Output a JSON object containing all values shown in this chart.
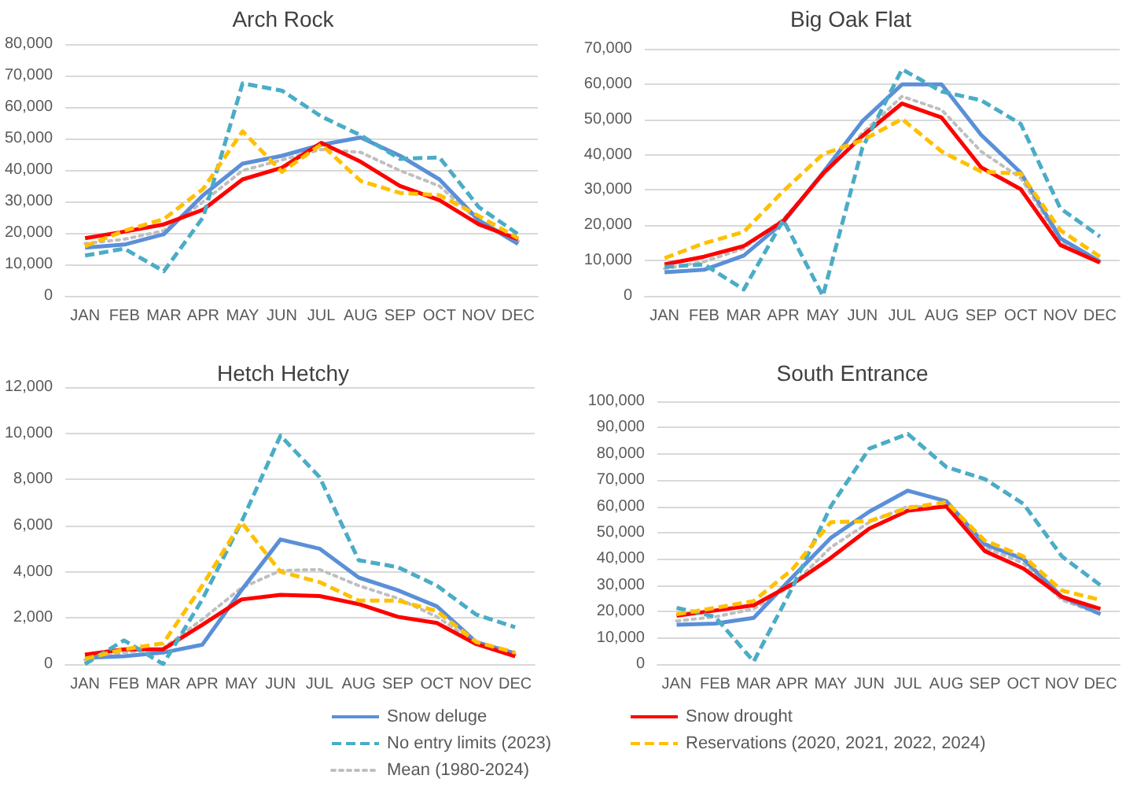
{
  "chart_data": [
    {
      "type": "line",
      "title": "Arch Rock",
      "categories": [
        "JAN",
        "FEB",
        "MAR",
        "APR",
        "MAY",
        "JUN",
        "JUL",
        "AUG",
        "SEP",
        "OCT",
        "NOV",
        "DEC"
      ],
      "ylim": [
        0,
        80000
      ],
      "yticks": [
        {
          "value": 0,
          "label": "0"
        },
        {
          "value": 10000,
          "label": "10,000"
        },
        {
          "value": 20000,
          "label": "20,000"
        },
        {
          "value": 30000,
          "label": "30,000"
        },
        {
          "value": 40000,
          "label": "40,000"
        },
        {
          "value": 50000,
          "label": "50,000"
        },
        {
          "value": 60000,
          "label": "60,000"
        },
        {
          "value": 70000,
          "label": "70,000"
        },
        {
          "value": 80000,
          "label": "80,000"
        }
      ],
      "grid": "y",
      "legend": false,
      "marker": "none",
      "series": [
        {
          "color": "#5b8fd8",
          "line_style": "solid",
          "values": [
            15300,
            16300,
            19600,
            32000,
            42000,
            44500,
            48000,
            50300,
            44500,
            37000,
            24000,
            16500
          ]
        },
        {
          "color": "#ff0000",
          "line_style": "solid",
          "values": [
            18300,
            20400,
            22700,
            27400,
            37000,
            40700,
            48600,
            42600,
            34900,
            30400,
            22700,
            18000
          ]
        },
        {
          "color": "#4bacc6",
          "line_style": "dashed",
          "values": [
            12800,
            15000,
            7800,
            25000,
            67500,
            65200,
            57000,
            51000,
            43500,
            44000,
            28200,
            19600
          ]
        },
        {
          "color": "#ffc000",
          "line_style": "dashed",
          "values": [
            15800,
            20700,
            24400,
            34000,
            52300,
            39400,
            48100,
            36500,
            32700,
            32000,
            25400,
            18300
          ]
        },
        {
          "color": "#bfbfbf",
          "line_style": "dotted",
          "values": [
            16600,
            18000,
            20700,
            29900,
            39800,
            43200,
            46500,
            45600,
            39800,
            34900,
            23700,
            17400
          ]
        }
      ]
    },
    {
      "type": "line",
      "title": "Big Oak Flat",
      "categories": [
        "JAN",
        "FEB",
        "MAR",
        "APR",
        "MAY",
        "JUN",
        "JUL",
        "AUG",
        "SEP",
        "OCT",
        "NOV",
        "DEC"
      ],
      "ylim": [
        0,
        70000
      ],
      "yticks": [
        {
          "value": 0,
          "label": "0"
        },
        {
          "value": 10000,
          "label": "10,000"
        },
        {
          "value": 20000,
          "label": "20,000"
        },
        {
          "value": 30000,
          "label": "30,000"
        },
        {
          "value": 40000,
          "label": "40,000"
        },
        {
          "value": 50000,
          "label": "50,000"
        },
        {
          "value": 60000,
          "label": "60,000"
        },
        {
          "value": 70000,
          "label": "70,000"
        }
      ],
      "grid": "y",
      "legend": false,
      "marker": "none",
      "series": [
        {
          "color": "#5b8fd8",
          "line_style": "solid",
          "values": [
            6700,
            7400,
            11400,
            20800,
            34900,
            49500,
            59900,
            59900,
            45600,
            34900,
            16300,
            9700
          ]
        },
        {
          "color": "#ff0000",
          "line_style": "solid",
          "values": [
            8900,
            11100,
            14100,
            21200,
            34600,
            45300,
            54500,
            50500,
            36400,
            30200,
            14400,
            9400
          ]
        },
        {
          "color": "#4bacc6",
          "line_style": "dashed",
          "values": [
            8200,
            8900,
            1800,
            21500,
            0,
            42000,
            64200,
            57900,
            55400,
            48700,
            24800,
            16800
          ]
        },
        {
          "color": "#ffc000",
          "line_style": "dashed",
          "values": [
            10700,
            14900,
            18100,
            29700,
            40100,
            44100,
            50100,
            40900,
            35200,
            34600,
            18600,
            11100
          ]
        },
        {
          "color": "#bfbfbf",
          "line_style": "dotted",
          "values": [
            7700,
            9700,
            13400,
            21800,
            34200,
            46100,
            56500,
            52700,
            40900,
            33400,
            15600,
            9700
          ]
        }
      ]
    },
    {
      "type": "line",
      "title": "Hetch Hetchy",
      "categories": [
        "JAN",
        "FEB",
        "MAR",
        "APR",
        "MAY",
        "JUN",
        "JUL",
        "AUG",
        "SEP",
        "OCT",
        "NOV",
        "DEC"
      ],
      "ylim": [
        0,
        12000
      ],
      "yticks": [
        {
          "value": 0,
          "label": "0"
        },
        {
          "value": 2000,
          "label": "2,000"
        },
        {
          "value": 4000,
          "label": "4,000"
        },
        {
          "value": 6000,
          "label": "6,000"
        },
        {
          "value": 8000,
          "label": "8,000"
        },
        {
          "value": 10000,
          "label": "10,000"
        },
        {
          "value": 12000,
          "label": "12,000"
        }
      ],
      "grid": "y",
      "legend": false,
      "marker": "none",
      "series": [
        {
          "color": "#5b8fd8",
          "line_style": "solid",
          "values": [
            270,
            340,
            500,
            840,
            3200,
            5400,
            5000,
            3750,
            3200,
            2500,
            960,
            460
          ]
        },
        {
          "color": "#ff0000",
          "line_style": "solid",
          "values": [
            410,
            640,
            640,
            1700,
            2800,
            3000,
            2950,
            2600,
            2050,
            1780,
            870,
            340
          ]
        },
        {
          "color": "#4bacc6",
          "line_style": "dashed",
          "values": [
            0,
            1030,
            0,
            2800,
            6150,
            9900,
            8100,
            4500,
            4200,
            3400,
            2150,
            1600
          ]
        },
        {
          "color": "#ffc000",
          "line_style": "dashed",
          "values": [
            230,
            640,
            900,
            3400,
            6150,
            4000,
            3550,
            2750,
            2750,
            2300,
            960,
            500
          ]
        },
        {
          "color": "#bfbfbf",
          "line_style": "dotted",
          "values": [
            180,
            500,
            680,
            1940,
            3300,
            4050,
            4100,
            3400,
            2850,
            2050,
            910,
            410
          ]
        }
      ]
    },
    {
      "type": "line",
      "title": "South Entrance",
      "categories": [
        "JAN",
        "FEB",
        "MAR",
        "APR",
        "MAY",
        "JUN",
        "JUL",
        "AUG",
        "SEP",
        "OCT",
        "NOV",
        "DEC"
      ],
      "ylim": [
        0,
        100000
      ],
      "yticks": [
        {
          "value": 0,
          "label": "0"
        },
        {
          "value": 10000,
          "label": "10,000"
        },
        {
          "value": 20000,
          "label": "20,000"
        },
        {
          "value": 30000,
          "label": "30,000"
        },
        {
          "value": 40000,
          "label": "40,000"
        },
        {
          "value": 50000,
          "label": "50,000"
        },
        {
          "value": 60000,
          "label": "60,000"
        },
        {
          "value": 70000,
          "label": "70,000"
        },
        {
          "value": 80000,
          "label": "80,000"
        },
        {
          "value": 90000,
          "label": "90,000"
        },
        {
          "value": 100000,
          "label": "100,000"
        }
      ],
      "grid": "y",
      "legend": "bottom",
      "marker": "none",
      "series": [
        {
          "name": "Snow deluge",
          "color": "#5b8fd8",
          "line_style": "solid",
          "values": [
            15000,
            15400,
            17600,
            33000,
            48000,
            58000,
            66000,
            62000,
            45600,
            40000,
            25600,
            19000
          ]
        },
        {
          "name": "Snow drought",
          "color": "#ff0000",
          "line_style": "solid",
          "values": [
            18400,
            20400,
            22400,
            30400,
            40400,
            51600,
            58400,
            60000,
            43000,
            36400,
            25600,
            21000
          ]
        },
        {
          "name": "No entry limits (2023)",
          "color": "#4bacc6",
          "line_style": "dashed",
          "values": [
            21400,
            18000,
            1000,
            29000,
            60000,
            82000,
            87600,
            75000,
            70400,
            61000,
            41000,
            30000
          ]
        },
        {
          "name": "Reservations (2020, 2021, 2022, 2024)",
          "color": "#ffc000",
          "line_style": "dashed",
          "values": [
            19000,
            21400,
            24000,
            36000,
            54000,
            54400,
            59400,
            61600,
            47000,
            41000,
            28000,
            24400
          ]
        },
        {
          "name": "Mean (1980-2024)",
          "color": "#bfbfbf",
          "line_style": "dotted",
          "values": [
            16400,
            18000,
            21000,
            30000,
            44400,
            54000,
            60000,
            59600,
            44400,
            38400,
            24400,
            19000
          ]
        }
      ]
    }
  ]
}
